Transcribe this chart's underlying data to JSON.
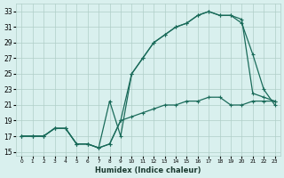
{
  "xlabel": "Humidex (Indice chaleur)",
  "xlim": [
    -0.5,
    23.5
  ],
  "ylim": [
    14.5,
    34
  ],
  "yticks": [
    15,
    17,
    19,
    21,
    23,
    25,
    27,
    29,
    31,
    33
  ],
  "xticks": [
    0,
    1,
    2,
    3,
    4,
    5,
    6,
    7,
    8,
    9,
    10,
    11,
    12,
    13,
    14,
    15,
    16,
    17,
    18,
    19,
    20,
    21,
    22,
    23
  ],
  "bg_color": "#d9f0ee",
  "line_color": "#1a6b5a",
  "grid_color": "#b0cec8",
  "line1_x": [
    0,
    1,
    2,
    3,
    4,
    5,
    6,
    7,
    8,
    9,
    10,
    11,
    12,
    13,
    14,
    15,
    16,
    17,
    18,
    19,
    20,
    21,
    22,
    23
  ],
  "line1_y": [
    17,
    17,
    17,
    18,
    18,
    16,
    16,
    15.5,
    16,
    19,
    25,
    27,
    29,
    30,
    31,
    31.5,
    32.5,
    33,
    32.5,
    32.5,
    32,
    22.5,
    22,
    21.5
  ],
  "line2_x": [
    0,
    1,
    2,
    3,
    4,
    5,
    6,
    7,
    8,
    9,
    10,
    11,
    12,
    13,
    14,
    15,
    16,
    17,
    18,
    19,
    20,
    21,
    22,
    23
  ],
  "line2_y": [
    17,
    17,
    17,
    18,
    18,
    16,
    16,
    15.5,
    21.5,
    17,
    25,
    27,
    29,
    30,
    31,
    31.5,
    32.5,
    33,
    32.5,
    32.5,
    31.5,
    27.5,
    23,
    21
  ],
  "line3_x": [
    0,
    1,
    2,
    3,
    4,
    5,
    6,
    7,
    8,
    9,
    10,
    11,
    12,
    13,
    14,
    15,
    16,
    17,
    18,
    19,
    20,
    21,
    22,
    23
  ],
  "line3_y": [
    17,
    17,
    17,
    18,
    18,
    16,
    16,
    15.5,
    16,
    19,
    19.5,
    20,
    20.5,
    21,
    21,
    21.5,
    21.5,
    22,
    22,
    21,
    21,
    21.5,
    21.5,
    21.5
  ]
}
